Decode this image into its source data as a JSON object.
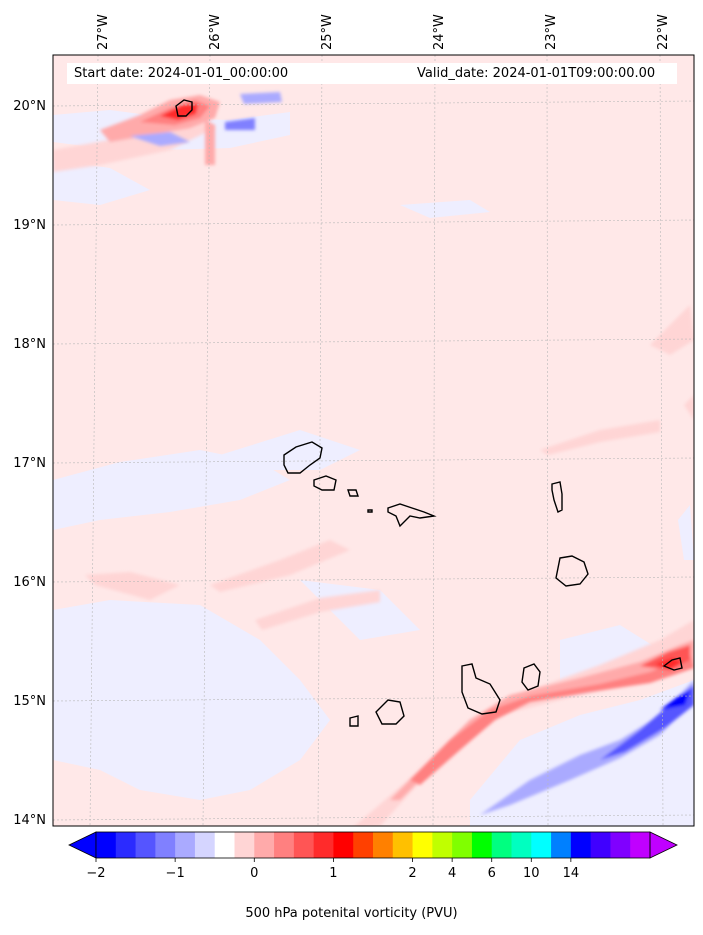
{
  "map": {
    "annotations": {
      "start_date": "Start date: 2024-01-01_00:00:00",
      "valid_date": "Valid_date: 2024-01-01T09:00:00.00"
    },
    "lon_labels": [
      "27°W",
      "26°W",
      "25°W",
      "24°W",
      "23°W",
      "22°W"
    ],
    "lat_labels": [
      "20°N",
      "19°N",
      "18°N",
      "17°N",
      "16°N",
      "15°N",
      "14°N"
    ],
    "colorbar": {
      "label": "500 hPa potenital vorticity (PVU)",
      "tick_labels": [
        "−2",
        "−1",
        "0",
        "1",
        "2",
        "4",
        "6",
        "10",
        "14"
      ],
      "colors": [
        "#0000ff",
        "#2b2bff",
        "#5555ff",
        "#8080ff",
        "#aaaaff",
        "#d5d5ff",
        "#ffffff",
        "#ffd5d5",
        "#ffaaaa",
        "#ff8080",
        "#ff5555",
        "#ff2b2b",
        "#ff0000",
        "#ff4000",
        "#ff8000",
        "#ffc000",
        "#ffff00",
        "#c0ff00",
        "#80ff00",
        "#00ff00",
        "#00ff80",
        "#00ffc0",
        "#00ffff",
        "#0080ff",
        "#0000ff",
        "#4000ff",
        "#8000ff",
        "#c000ff"
      ],
      "extend_low_color": "#0000ff",
      "extend_high_color": "#c000ff"
    },
    "background_color": "#ffe8e8"
  }
}
